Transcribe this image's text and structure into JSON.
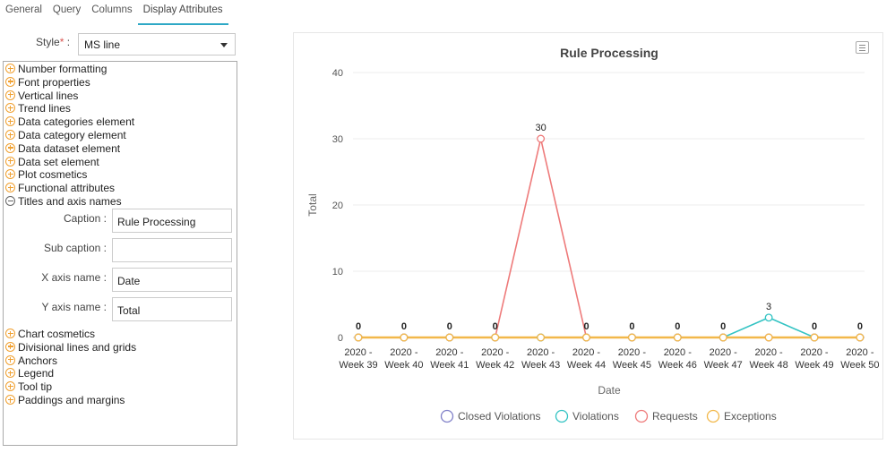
{
  "tabs": [
    {
      "label": "General",
      "active": false
    },
    {
      "label": "Query",
      "active": false
    },
    {
      "label": "Columns",
      "active": false
    },
    {
      "label": "Display Attributes",
      "active": true
    }
  ],
  "style_field": {
    "label": "Style",
    "required_mark": "*",
    "colon": ":",
    "value": "MS line"
  },
  "accordion": {
    "before": [
      "Number formatting",
      "Font properties",
      "Vertical lines",
      "Trend lines",
      "Data categories element",
      "Data category element",
      "Data dataset element",
      "Data set element",
      "Plot cosmetics",
      "Functional attributes"
    ],
    "expanded": "Titles and axis names",
    "fields": [
      {
        "label": "Caption :",
        "value": "Rule Processing"
      },
      {
        "label": "Sub caption :",
        "value": ""
      },
      {
        "label": "X axis name :",
        "value": "Date"
      },
      {
        "label": "Y axis name :",
        "value": "Total"
      }
    ],
    "after": [
      "Chart cosmetics",
      "Divisional lines and grids",
      "Anchors",
      "Legend",
      "Tool tip",
      "Paddings and margins"
    ]
  },
  "chart_data": {
    "type": "line",
    "title": "Rule Processing",
    "xlabel": "Date",
    "ylabel": "Total",
    "ylim": [
      0,
      40
    ],
    "yticks": [
      0,
      10,
      20,
      30,
      40
    ],
    "categories": [
      [
        "2020 -",
        "Week 39"
      ],
      [
        "2020 -",
        "Week 40"
      ],
      [
        "2020 -",
        "Week 41"
      ],
      [
        "2020 -",
        "Week 42"
      ],
      [
        "2020 -",
        "Week 43"
      ],
      [
        "2020 -",
        "Week 44"
      ],
      [
        "2020 -",
        "Week 45"
      ],
      [
        "2020 -",
        "Week 46"
      ],
      [
        "2020 -",
        "Week 47"
      ],
      [
        "2020 -",
        "Week 48"
      ],
      [
        "2020 -",
        "Week 49"
      ],
      [
        "2020 -",
        "Week 50"
      ]
    ],
    "series": [
      {
        "name": "Closed Violations",
        "color": "#8080c8",
        "values": [
          0,
          0,
          0,
          0,
          0,
          0,
          0,
          0,
          0,
          0,
          0,
          0
        ]
      },
      {
        "name": "Violations",
        "color": "#33c3c3",
        "values": [
          0,
          0,
          0,
          0,
          0,
          0,
          0,
          0,
          0,
          3,
          0,
          0
        ]
      },
      {
        "name": "Requests",
        "color": "#ee7a7a",
        "values": [
          0,
          0,
          0,
          0,
          30,
          0,
          0,
          0,
          0,
          0,
          0,
          0
        ]
      },
      {
        "name": "Exceptions",
        "color": "#f2b84a",
        "values": [
          0,
          0,
          0,
          0,
          0,
          0,
          0,
          0,
          0,
          0,
          0,
          0
        ]
      }
    ],
    "data_labels": [
      "0",
      "0",
      "0",
      "0",
      "30",
      "0",
      "0",
      "0",
      "0",
      "3",
      "0",
      "0"
    ],
    "legend_position": "bottom",
    "grid": true
  }
}
